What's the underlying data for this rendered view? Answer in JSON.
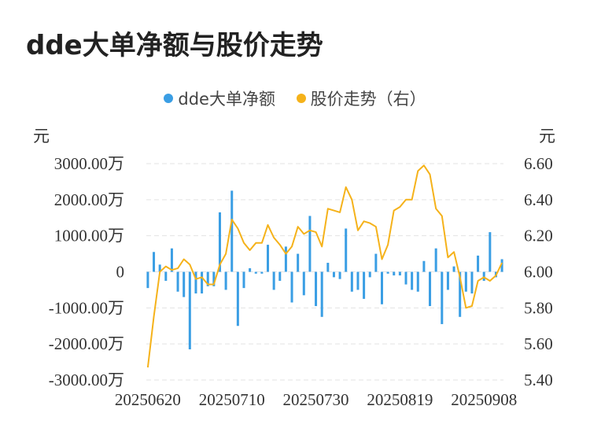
{
  "title": "dde大单净额与股价走势",
  "legend": [
    {
      "label": "dde大单净额",
      "color": "#3a9ee4"
    },
    {
      "label": "股价走势（右）",
      "color": "#f5b21a"
    }
  ],
  "left_unit": "元",
  "right_unit": "元",
  "chart_data": {
    "type": "bar+line",
    "title": "dde大单净额与股价走势",
    "y_left": {
      "unit": "元",
      "ticks": [
        "3000.00万",
        "2000.00万",
        "1000.00万",
        "0",
        "-1000.00万",
        "-2000.00万",
        "-3000.00万"
      ],
      "range": [
        -3000,
        3000
      ],
      "tick_values": [
        3000,
        2000,
        1000,
        0,
        -1000,
        -2000,
        -3000
      ]
    },
    "y_right": {
      "unit": "元",
      "ticks": [
        "6.60",
        "6.40",
        "6.20",
        "6.00",
        "5.80",
        "5.60",
        "5.40"
      ],
      "range": [
        5.4,
        6.6
      ],
      "tick_values": [
        6.6,
        6.4,
        6.2,
        6.0,
        5.8,
        5.6,
        5.4
      ]
    },
    "x_tick_labels": [
      {
        "label": "20250620",
        "index": 0
      },
      {
        "label": "20250710",
        "index": 14
      },
      {
        "label": "20250730",
        "index": 28
      },
      {
        "label": "20250819",
        "index": 42
      },
      {
        "label": "20250908",
        "index": 56
      }
    ],
    "grid": true,
    "legend_position": "top-center",
    "series": [
      {
        "name": "dde大单净额",
        "type": "bar",
        "color": "#3a9ee4",
        "values": [
          -450,
          550,
          200,
          -250,
          650,
          -550,
          -700,
          -2150,
          -600,
          -600,
          -400,
          -400,
          1650,
          -500,
          2250,
          -1500,
          -450,
          100,
          -50,
          -50,
          750,
          -500,
          -250,
          700,
          -850,
          500,
          -650,
          1550,
          -950,
          -1250,
          250,
          -150,
          -200,
          1200,
          -550,
          -500,
          -750,
          -150,
          500,
          -900,
          -50,
          -100,
          -100,
          -350,
          -500,
          -550,
          300,
          -950,
          650,
          -1450,
          -500,
          150,
          -1250,
          -550,
          -600,
          450,
          -250,
          1100,
          -150,
          350
        ]
      },
      {
        "name": "股价走势（右）",
        "type": "line",
        "axis": "right",
        "color": "#f5b21a",
        "values": [
          5.47,
          5.75,
          6.0,
          6.03,
          6.01,
          6.02,
          6.07,
          6.04,
          5.96,
          5.97,
          5.93,
          5.93,
          6.04,
          6.1,
          6.29,
          6.24,
          6.16,
          6.12,
          6.16,
          6.16,
          6.26,
          6.19,
          6.15,
          6.1,
          6.14,
          6.25,
          6.21,
          6.23,
          6.22,
          6.14,
          6.35,
          6.34,
          6.33,
          6.47,
          6.4,
          6.23,
          6.28,
          6.27,
          6.25,
          6.07,
          6.15,
          6.34,
          6.36,
          6.4,
          6.4,
          6.56,
          6.59,
          6.54,
          6.35,
          6.31,
          6.08,
          6.11,
          5.97,
          5.8,
          5.81,
          5.95,
          5.97,
          5.95,
          5.98,
          6.05
        ]
      }
    ]
  }
}
